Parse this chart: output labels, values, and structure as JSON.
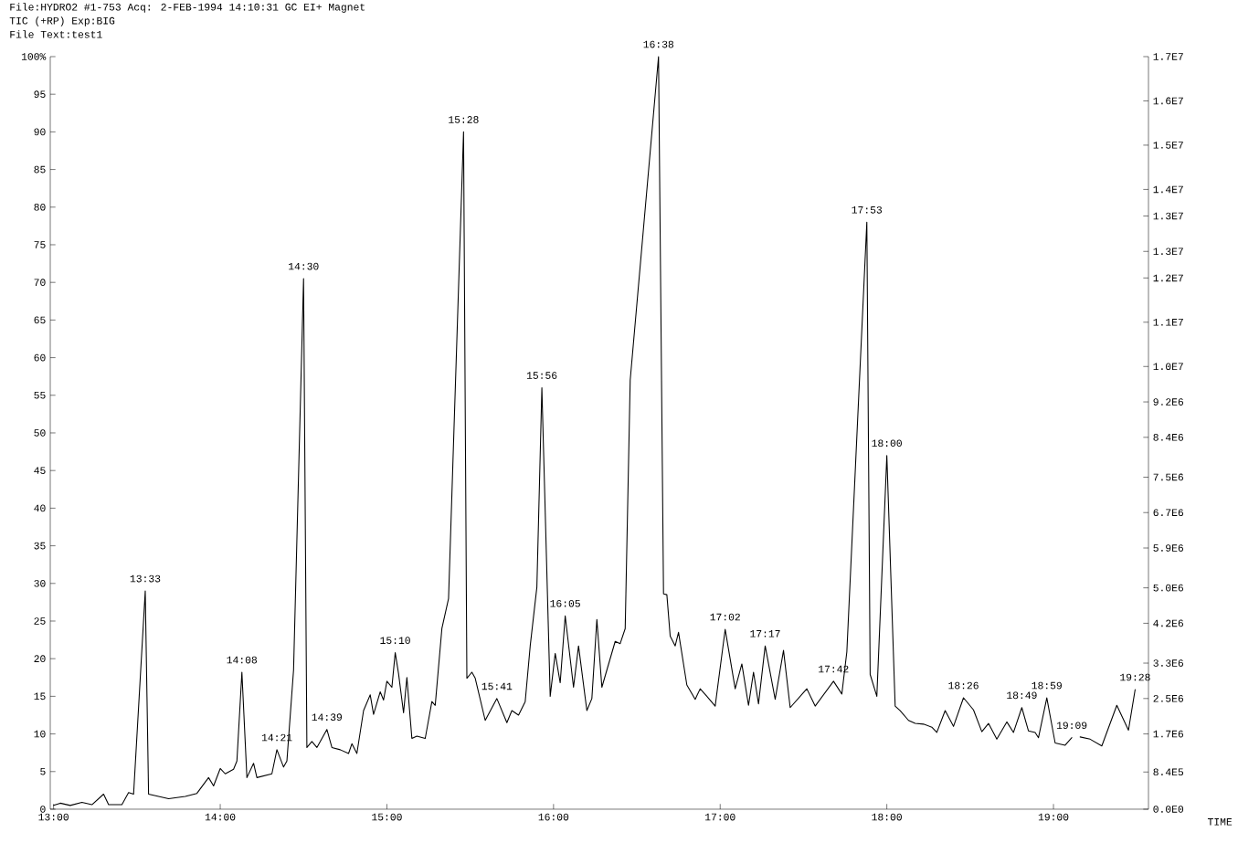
{
  "chart_data": {
    "type": "line",
    "title": "File:HYDRO2 #1-753 Acq: 2-FEB-1994 14:10:31 GC EI+ Magnet",
    "subtitle": "TIC (+RP)  Exp:BIG",
    "xlabel": "TIME",
    "color": "#000000",
    "x": [
      13.0,
      13.04,
      13.1,
      13.17,
      13.23,
      13.3,
      13.33,
      13.41,
      13.45,
      13.48,
      13.55,
      13.57,
      13.63,
      13.69,
      13.79,
      13.86,
      13.93,
      13.96,
      14.0,
      14.03,
      14.08,
      14.1,
      14.13,
      14.16,
      14.2,
      14.22,
      14.31,
      14.34,
      14.38,
      14.4,
      14.44,
      14.5,
      14.52,
      14.55,
      14.58,
      14.64,
      14.67,
      14.72,
      14.77,
      14.79,
      14.82,
      14.86,
      14.9,
      14.92,
      14.96,
      14.98,
      15.0,
      15.03,
      15.05,
      15.07,
      15.1,
      15.12,
      15.15,
      15.18,
      15.23,
      15.27,
      15.29,
      15.33,
      15.37,
      15.46,
      15.48,
      15.51,
      15.53,
      15.59,
      15.66,
      15.72,
      15.75,
      15.79,
      15.83,
      15.86,
      15.9,
      15.93,
      15.98,
      16.01,
      16.04,
      16.07,
      16.12,
      16.15,
      16.2,
      16.23,
      16.26,
      16.29,
      16.37,
      16.4,
      16.43,
      16.46,
      16.63,
      16.66,
      16.68,
      16.7,
      16.73,
      16.75,
      16.8,
      16.85,
      16.88,
      16.92,
      16.97,
      17.03,
      17.09,
      17.13,
      17.17,
      17.2,
      17.23,
      17.27,
      17.33,
      17.38,
      17.42,
      17.52,
      17.57,
      17.68,
      17.73,
      17.76,
      17.88,
      17.9,
      17.94,
      18.0,
      18.05,
      18.08,
      18.13,
      18.17,
      18.22,
      18.27,
      18.3,
      18.35,
      18.4,
      18.46,
      18.52,
      18.57,
      18.61,
      18.66,
      18.72,
      18.76,
      18.81,
      18.85,
      18.89,
      18.91,
      18.96,
      19.01,
      19.07,
      19.11,
      19.13,
      19.16,
      19.22,
      19.29,
      19.38,
      19.45,
      19.49
    ],
    "values": [
      0.5,
      0.8,
      0.5,
      0.9,
      0.6,
      2.0,
      0.6,
      0.6,
      2.2,
      2.0,
      29,
      2.0,
      1.7,
      1.4,
      1.7,
      2.1,
      4.2,
      3.1,
      5.4,
      4.7,
      5.3,
      6.4,
      18.2,
      4.2,
      6.1,
      4.2,
      4.7,
      7.9,
      5.6,
      6.4,
      18.5,
      70.5,
      8.2,
      9.0,
      8.2,
      10.6,
      8.2,
      7.9,
      7.4,
      8.7,
      7.4,
      13.1,
      15.2,
      12.6,
      15.6,
      14.5,
      17.0,
      16.2,
      20.8,
      18.0,
      12.8,
      17.5,
      9.4,
      9.7,
      9.4,
      14.3,
      13.8,
      24,
      28,
      90,
      17.4,
      18.2,
      17.4,
      11.8,
      14.7,
      11.5,
      13.1,
      12.5,
      14.3,
      21.7,
      29.5,
      56,
      15,
      20.7,
      16.8,
      25.7,
      16.2,
      21.7,
      13.1,
      14.7,
      25.2,
      16.2,
      22.3,
      22,
      24,
      57,
      100,
      28.6,
      28.5,
      23,
      21.7,
      23.5,
      16.5,
      14.6,
      16,
      15,
      13.7,
      23.9,
      16,
      19.3,
      13.8,
      18.2,
      14,
      21.7,
      14.6,
      21.1,
      13.5,
      16,
      13.7,
      17,
      15.3,
      20.9,
      78,
      17.9,
      15,
      47,
      13.7,
      13.1,
      11.8,
      11.4,
      11.3,
      10.9,
      10.2,
      13.1,
      11,
      14.8,
      13.2,
      10.3,
      11.4,
      9.3,
      11.6,
      10.2,
      13.5,
      10.4,
      10.2,
      9.5,
      14.8,
      8.8,
      8.5,
      9.5,
      null,
      9.6,
      9.3,
      8.4,
      13.8,
      10.5,
      15.9
    ],
    "xlim": [
      12.98,
      19.57
    ],
    "ylim": [
      0,
      100
    ],
    "y2lim": [
      0,
      17000000
    ],
    "xticks": [
      {
        "value": 13,
        "label": "13:00"
      },
      {
        "value": 14,
        "label": "14:00"
      },
      {
        "value": 15,
        "label": "15:00"
      },
      {
        "value": 16,
        "label": "16:00"
      },
      {
        "value": 17,
        "label": "17:00"
      },
      {
        "value": 18,
        "label": "18:00"
      },
      {
        "value": 19,
        "label": "19:00"
      }
    ],
    "yticks": [
      0,
      5,
      10,
      15,
      20,
      25,
      30,
      35,
      40,
      45,
      50,
      55,
      60,
      65,
      70,
      75,
      80,
      85,
      90,
      95,
      {
        "value": 100,
        "label": "100%"
      }
    ],
    "y2ticks": [
      {
        "value": 0,
        "label": "0.0E0"
      },
      {
        "value": 840000,
        "label": "8.4E5"
      },
      {
        "value": 1700000,
        "label": "1.7E6"
      },
      {
        "value": 2500000,
        "label": "2.5E6"
      },
      {
        "value": 3300000,
        "label": "3.3E6"
      },
      {
        "value": 4200000,
        "label": "4.2E6"
      },
      {
        "value": 5000000,
        "label": "5.0E6"
      },
      {
        "value": 5900000,
        "label": "5.9E6"
      },
      {
        "value": 6700000,
        "label": "6.7E6"
      },
      {
        "value": 7500000,
        "label": "7.5E6"
      },
      {
        "value": 8400000,
        "label": "8.4E6"
      },
      {
        "value": 9200000,
        "label": "9.2E6"
      },
      {
        "value": 10000000,
        "label": "1.0E7"
      },
      {
        "value": 11000000,
        "label": "1.1E7"
      },
      {
        "value": 12000000,
        "label": "1.2E7"
      },
      {
        "value": 12600000,
        "label": "1.3E7"
      },
      {
        "value": 13400000,
        "label": "1.3E7"
      },
      {
        "value": 14000000,
        "label": "1.4E7"
      },
      {
        "value": 15000000,
        "label": "1.5E7"
      },
      {
        "value": 16000000,
        "label": "1.6E7"
      },
      {
        "value": 17000000,
        "label": "1.7E7"
      }
    ],
    "annotations": [
      "File Text:test1",
      {
        "text": "13:33",
        "x": 13.55,
        "y": 29
      },
      {
        "text": "14:08",
        "x": 14.13,
        "y": 18.2
      },
      {
        "text": "14:21",
        "x": 14.34,
        "y": 7.9
      },
      {
        "text": "14:30",
        "x": 14.5,
        "y": 70.5
      },
      {
        "text": "14:39",
        "x": 14.64,
        "y": 10.6
      },
      {
        "text": "15:10",
        "x": 15.05,
        "y": 20.8
      },
      {
        "text": "15:28",
        "x": 15.46,
        "y": 90
      },
      {
        "text": "15:41",
        "x": 15.66,
        "y": 14.7
      },
      {
        "text": "15:56",
        "x": 15.93,
        "y": 56
      },
      {
        "text": "16:05",
        "x": 16.07,
        "y": 25.7
      },
      {
        "text": "16:38",
        "x": 16.63,
        "y": 100
      },
      {
        "text": "17:02",
        "x": 17.03,
        "y": 23.9
      },
      {
        "text": "17:17",
        "x": 17.27,
        "y": 21.7
      },
      {
        "text": "17:42",
        "x": 17.68,
        "y": 17
      },
      {
        "text": "17:53",
        "x": 17.88,
        "y": 78
      },
      {
        "text": "18:00",
        "x": 18.0,
        "y": 47
      },
      {
        "text": "18:26",
        "x": 18.46,
        "y": 14.8
      },
      {
        "text": "18:49",
        "x": 18.81,
        "y": 13.5
      },
      {
        "text": "18:59",
        "x": 18.96,
        "y": 14.8
      },
      {
        "text": "19:09",
        "x": 19.11,
        "y": 9.5
      },
      {
        "text": "19:28",
        "x": 19.49,
        "y": 15.9
      }
    ]
  }
}
